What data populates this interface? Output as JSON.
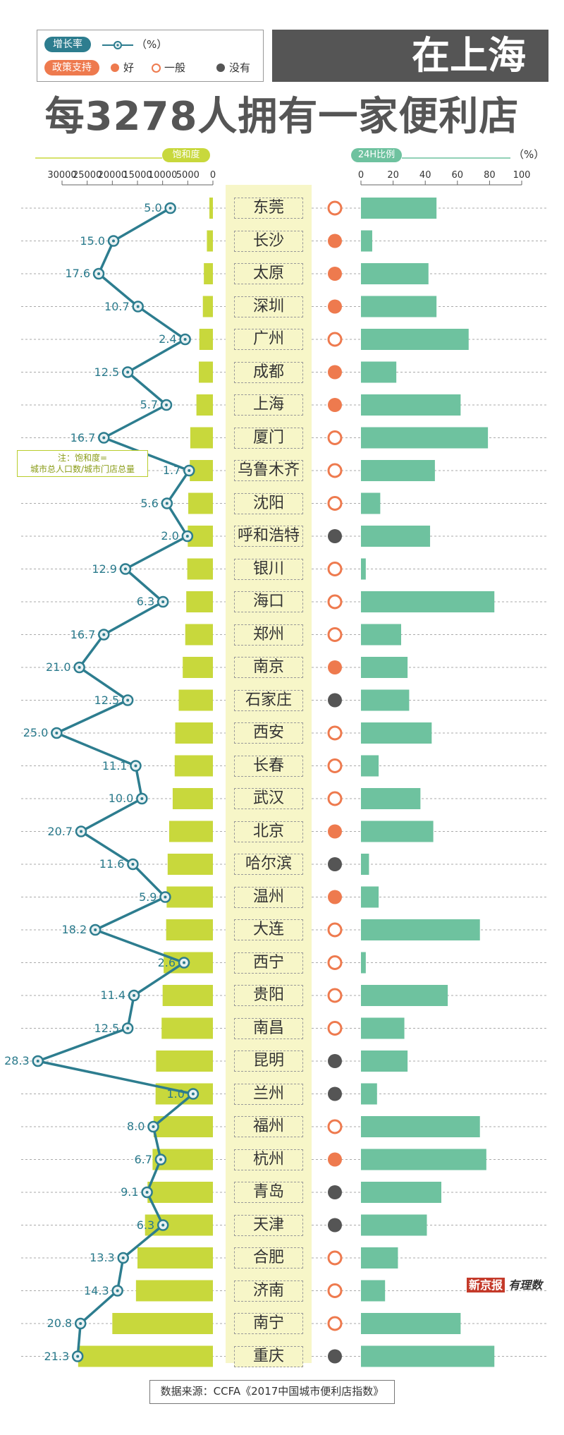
{
  "legend": {
    "growth_label": "增长率",
    "growth_unit": "（%）",
    "policy_label": "政策支持",
    "good": "好",
    "normal": "一般",
    "none": "没有"
  },
  "title": {
    "top": "在上海",
    "main": "每3278人拥有一家便利店"
  },
  "axes": {
    "saturation_label": "饱和度",
    "saturation_ticks": [
      "30000",
      "25000",
      "20000",
      "15000",
      "10000",
      "5000",
      "0"
    ],
    "pct24_label": "24H比例",
    "pct24_unit": "（%）",
    "pct24_ticks": [
      "0",
      "20",
      "40",
      "60",
      "80",
      "100"
    ]
  },
  "note": {
    "line1": "注：饱和度=",
    "line2": "城市总人口数/城市门店总量"
  },
  "source": "数据来源：CCFA《2017中国城市便利店指数》",
  "logo": {
    "part1": "新京报",
    "part2": "有理数"
  },
  "colors": {
    "growth": "#2d7d8f",
    "bar_left": "#c8d83c",
    "bar_right": "#6ec29f",
    "good": "#ee7a4e",
    "none": "#555555",
    "band": "#f7f6c8"
  },
  "chart_data": {
    "type": "bar",
    "categories": [
      "东莞",
      "长沙",
      "太原",
      "深圳",
      "广州",
      "成都",
      "上海",
      "厦门",
      "乌鲁木齐",
      "沈阳",
      "呼和浩特",
      "银川",
      "海口",
      "郑州",
      "南京",
      "石家庄",
      "西安",
      "长春",
      "武汉",
      "北京",
      "哈尔滨",
      "温州",
      "大连",
      "西宁",
      "贵阳",
      "南昌",
      "昆明",
      "兰州",
      "福州",
      "杭州",
      "青岛",
      "天津",
      "合肥",
      "济南",
      "南宁",
      "重庆"
    ],
    "series": [
      {
        "name": "增长率",
        "type": "line",
        "values": [
          5.0,
          15.0,
          17.6,
          10.7,
          2.4,
          12.5,
          5.7,
          16.7,
          1.7,
          5.6,
          2.0,
          12.9,
          6.3,
          16.7,
          21.0,
          12.5,
          25.0,
          11.1,
          10.0,
          20.7,
          11.6,
          5.9,
          18.2,
          2.6,
          11.4,
          12.5,
          28.3,
          1.0,
          8.0,
          6.7,
          9.1,
          6.3,
          13.3,
          14.3,
          20.8,
          21.3
        ],
        "labels": [
          "5.0",
          "15.0",
          "17.6",
          "10.7",
          "2.4",
          "12.5",
          "5.7",
          "16.7",
          "1.7",
          "5.6",
          "2.0",
          "12.9",
          "6.3",
          "16.7",
          "21.0",
          "12.5",
          "25.0",
          "11.1",
          "10.0",
          "20.7",
          "11.6",
          "5.9",
          "18.2",
          "2.6",
          "11.4",
          "12.5",
          "28.3",
          "1.0",
          "8.0",
          "6.7",
          "9.1",
          "6.3",
          "13.3",
          "14.3",
          "20.8",
          "21.3"
        ]
      },
      {
        "name": "饱和度",
        "type": "bar",
        "values": [
          700,
          1200,
          1800,
          2000,
          2700,
          2800,
          3278,
          4500,
          4600,
          4900,
          5000,
          5100,
          5300,
          5500,
          6000,
          6800,
          7500,
          7600,
          8000,
          8700,
          9000,
          9200,
          9300,
          9800,
          10000,
          10200,
          11300,
          11400,
          11800,
          12000,
          13000,
          13500,
          15000,
          15300,
          20000,
          26800
        ]
      },
      {
        "name": "24H比例",
        "type": "bar",
        "values": [
          47,
          7,
          42,
          47,
          67,
          22,
          62,
          79,
          46,
          12,
          43,
          3,
          83,
          25,
          29,
          30,
          44,
          11,
          37,
          45,
          5,
          11,
          74,
          3,
          54,
          27,
          29,
          10,
          74,
          78,
          50,
          41,
          23,
          15,
          62,
          83
        ]
      },
      {
        "name": "政策支持",
        "type": "category",
        "values": [
          "一般",
          "好",
          "好",
          "好",
          "一般",
          "好",
          "好",
          "一般",
          "一般",
          "一般",
          "没有",
          "一般",
          "一般",
          "一般",
          "好",
          "没有",
          "一般",
          "一般",
          "一般",
          "好",
          "没有",
          "好",
          "一般",
          "一般",
          "一般",
          "一般",
          "没有",
          "没有",
          "一般",
          "好",
          "没有",
          "没有",
          "一般",
          "一般",
          "一般",
          "没有"
        ]
      }
    ],
    "saturation_axis": {
      "label": "饱和度",
      "xlim": [
        30000,
        0
      ]
    },
    "pct24_axis": {
      "label": "24H比例",
      "unit": "%",
      "xlim": [
        0,
        100
      ]
    },
    "growth_axis": {
      "label": "增长率",
      "unit": "%",
      "xlim": [
        30,
        0
      ]
    }
  }
}
